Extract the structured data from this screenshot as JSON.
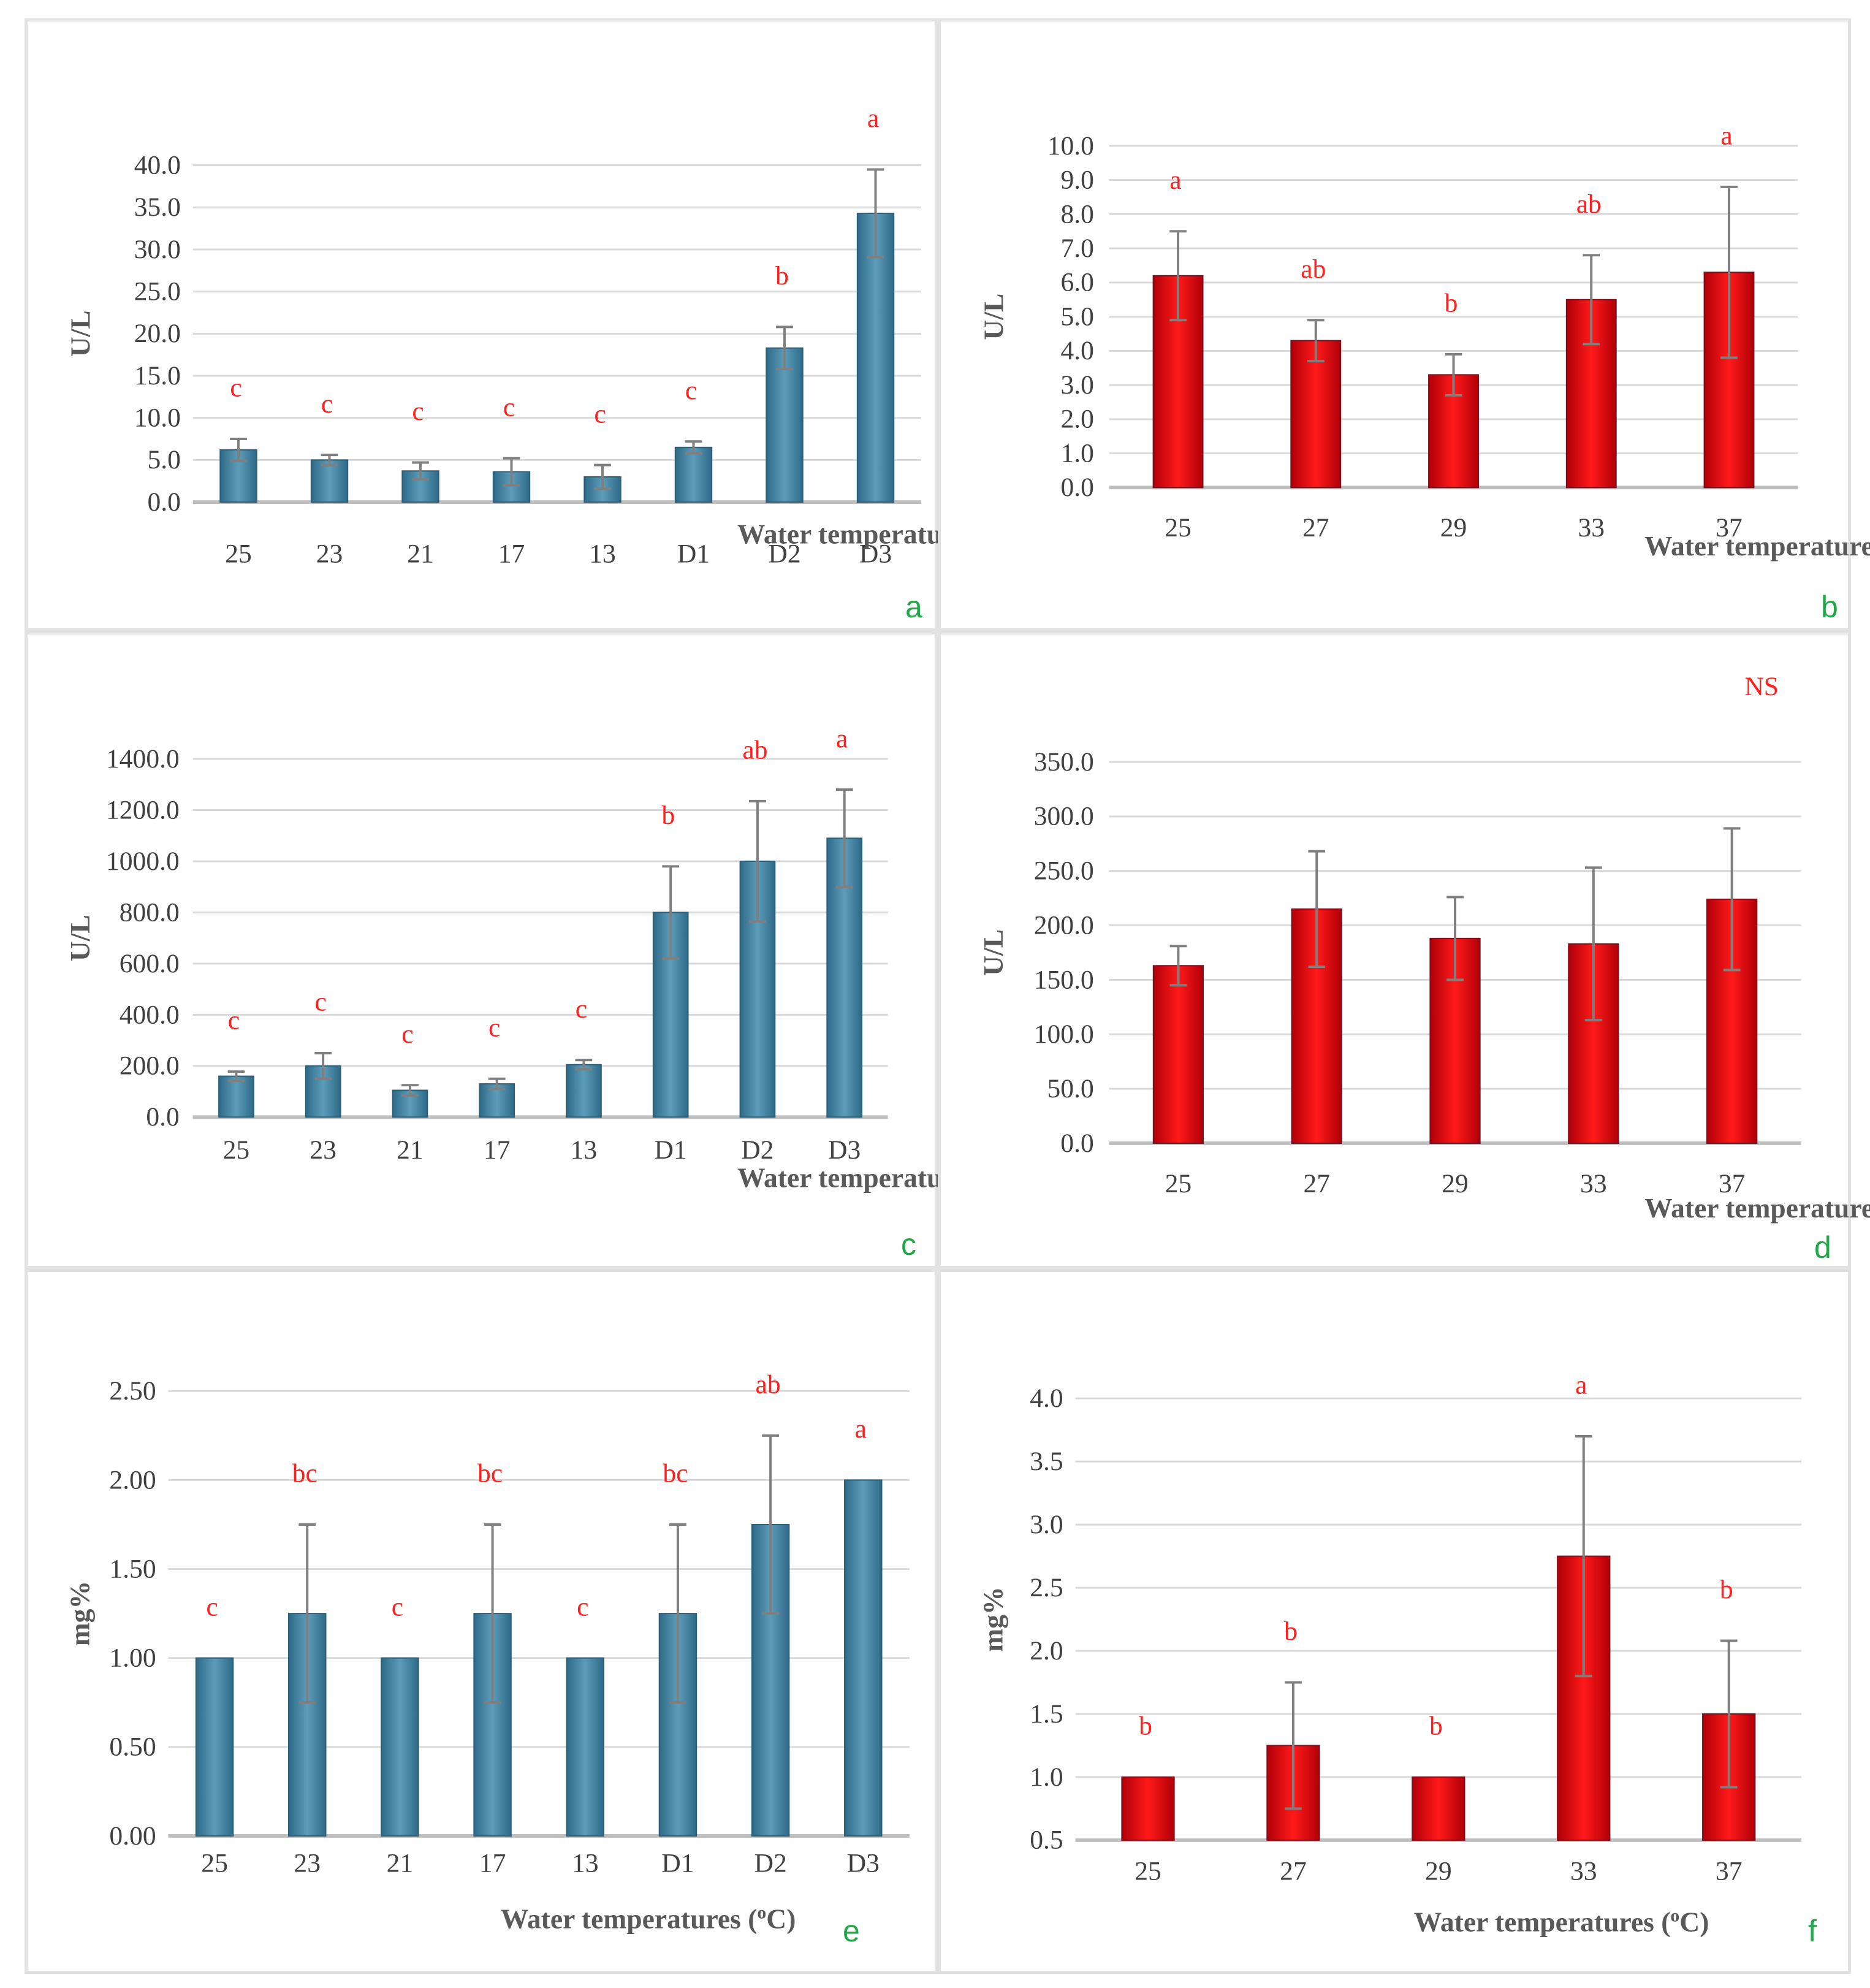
{
  "colors": {
    "blue_bar": "#3f7f9d",
    "red_bar": "#e8000b",
    "letter": "#22a64a",
    "sig": "#ff2020",
    "grid": "#d9d9d9",
    "axis": "#bfbfbf",
    "error": "#7f7f7f"
  },
  "chart_data": [
    {
      "panel": "a",
      "type": "bar",
      "color": "blue",
      "ylabel": "U/L",
      "xlabel": "Water temperatures (oC)",
      "ylim": [
        0,
        40
      ],
      "ystep": 5,
      "ydecimals": 1,
      "grid": true,
      "categories": [
        "25",
        "23",
        "21",
        "17",
        "13",
        "D1",
        "D2",
        "D3"
      ],
      "values": [
        6.2,
        5.0,
        3.7,
        3.6,
        3.0,
        6.5,
        18.3,
        34.3
      ],
      "errors": [
        1.3,
        0.6,
        1.0,
        1.6,
        1.4,
        0.7,
        2.5,
        5.2
      ],
      "sig_letters": [
        "c",
        "c",
        "c",
        "c",
        "c",
        "c",
        "b",
        "a"
      ]
    },
    {
      "panel": "b",
      "type": "bar",
      "color": "red",
      "ylabel": "U/L",
      "xlabel": "Water temperatures (oC)",
      "ylim": [
        0,
        10
      ],
      "ystep": 1,
      "ydecimals": 1,
      "grid": true,
      "categories": [
        "25",
        "27",
        "29",
        "33",
        "37"
      ],
      "values": [
        6.2,
        4.3,
        3.3,
        5.5,
        6.3
      ],
      "errors": [
        1.3,
        0.6,
        0.6,
        1.3,
        2.5
      ],
      "sig_letters": [
        "a",
        "ab",
        "b",
        "ab",
        "a"
      ]
    },
    {
      "panel": "c",
      "type": "bar",
      "color": "blue",
      "ylabel": "U/L",
      "xlabel": "Water temperatures (oC)",
      "ylim": [
        0,
        1400
      ],
      "ystep": 200,
      "ydecimals": 1,
      "grid": true,
      "categories": [
        "25",
        "23",
        "21",
        "17",
        "13",
        "D1",
        "D2",
        "D3"
      ],
      "values": [
        160,
        200,
        105,
        130,
        205,
        800,
        1000,
        1090
      ],
      "errors": [
        18,
        50,
        20,
        20,
        18,
        180,
        235,
        190
      ],
      "sig_letters": [
        "c",
        "c",
        "c",
        "c",
        "c",
        "b",
        "ab",
        "a"
      ]
    },
    {
      "panel": "d",
      "type": "bar",
      "color": "red",
      "ylabel": "U/L",
      "xlabel": "Water temperatures (oC)",
      "ylim": [
        0,
        350
      ],
      "ystep": 50,
      "ydecimals": 1,
      "grid": true,
      "categories": [
        "25",
        "27",
        "29",
        "33",
        "37"
      ],
      "values": [
        163,
        215,
        188,
        183,
        224
      ],
      "errors": [
        18,
        53,
        38,
        70,
        65
      ],
      "annotation": "NS"
    },
    {
      "panel": "e",
      "type": "bar",
      "color": "blue",
      "ylabel": "mg%",
      "xlabel": "Water temperatures (oC)",
      "ylim": [
        0,
        2.5
      ],
      "ystep": 0.5,
      "ydecimals": 2,
      "grid": true,
      "categories": [
        "25",
        "23",
        "21",
        "17",
        "13",
        "D1",
        "D2",
        "D3"
      ],
      "values": [
        1.0,
        1.25,
        1.0,
        1.25,
        1.0,
        1.25,
        1.75,
        2.0
      ],
      "errors": [
        0,
        0.5,
        0,
        0.5,
        0,
        0.5,
        0.5,
        0
      ],
      "sig_letters": [
        "c",
        "bc",
        "c",
        "bc",
        "c",
        "bc",
        "ab",
        "a"
      ]
    },
    {
      "panel": "f",
      "type": "bar",
      "color": "red",
      "ylabel": "mg%",
      "xlabel": "Water temperatures (oC)",
      "ylim": [
        0.5,
        4.0
      ],
      "ystep": 0.5,
      "ydecimals": 1,
      "grid": true,
      "categories": [
        "25",
        "27",
        "29",
        "33",
        "37"
      ],
      "values": [
        1.0,
        1.25,
        1.0,
        2.75,
        1.5
      ],
      "errors": [
        0,
        0.5,
        0,
        0.95,
        0.58
      ],
      "sig_letters": [
        "b",
        "b",
        "b",
        "a",
        "b"
      ]
    }
  ]
}
